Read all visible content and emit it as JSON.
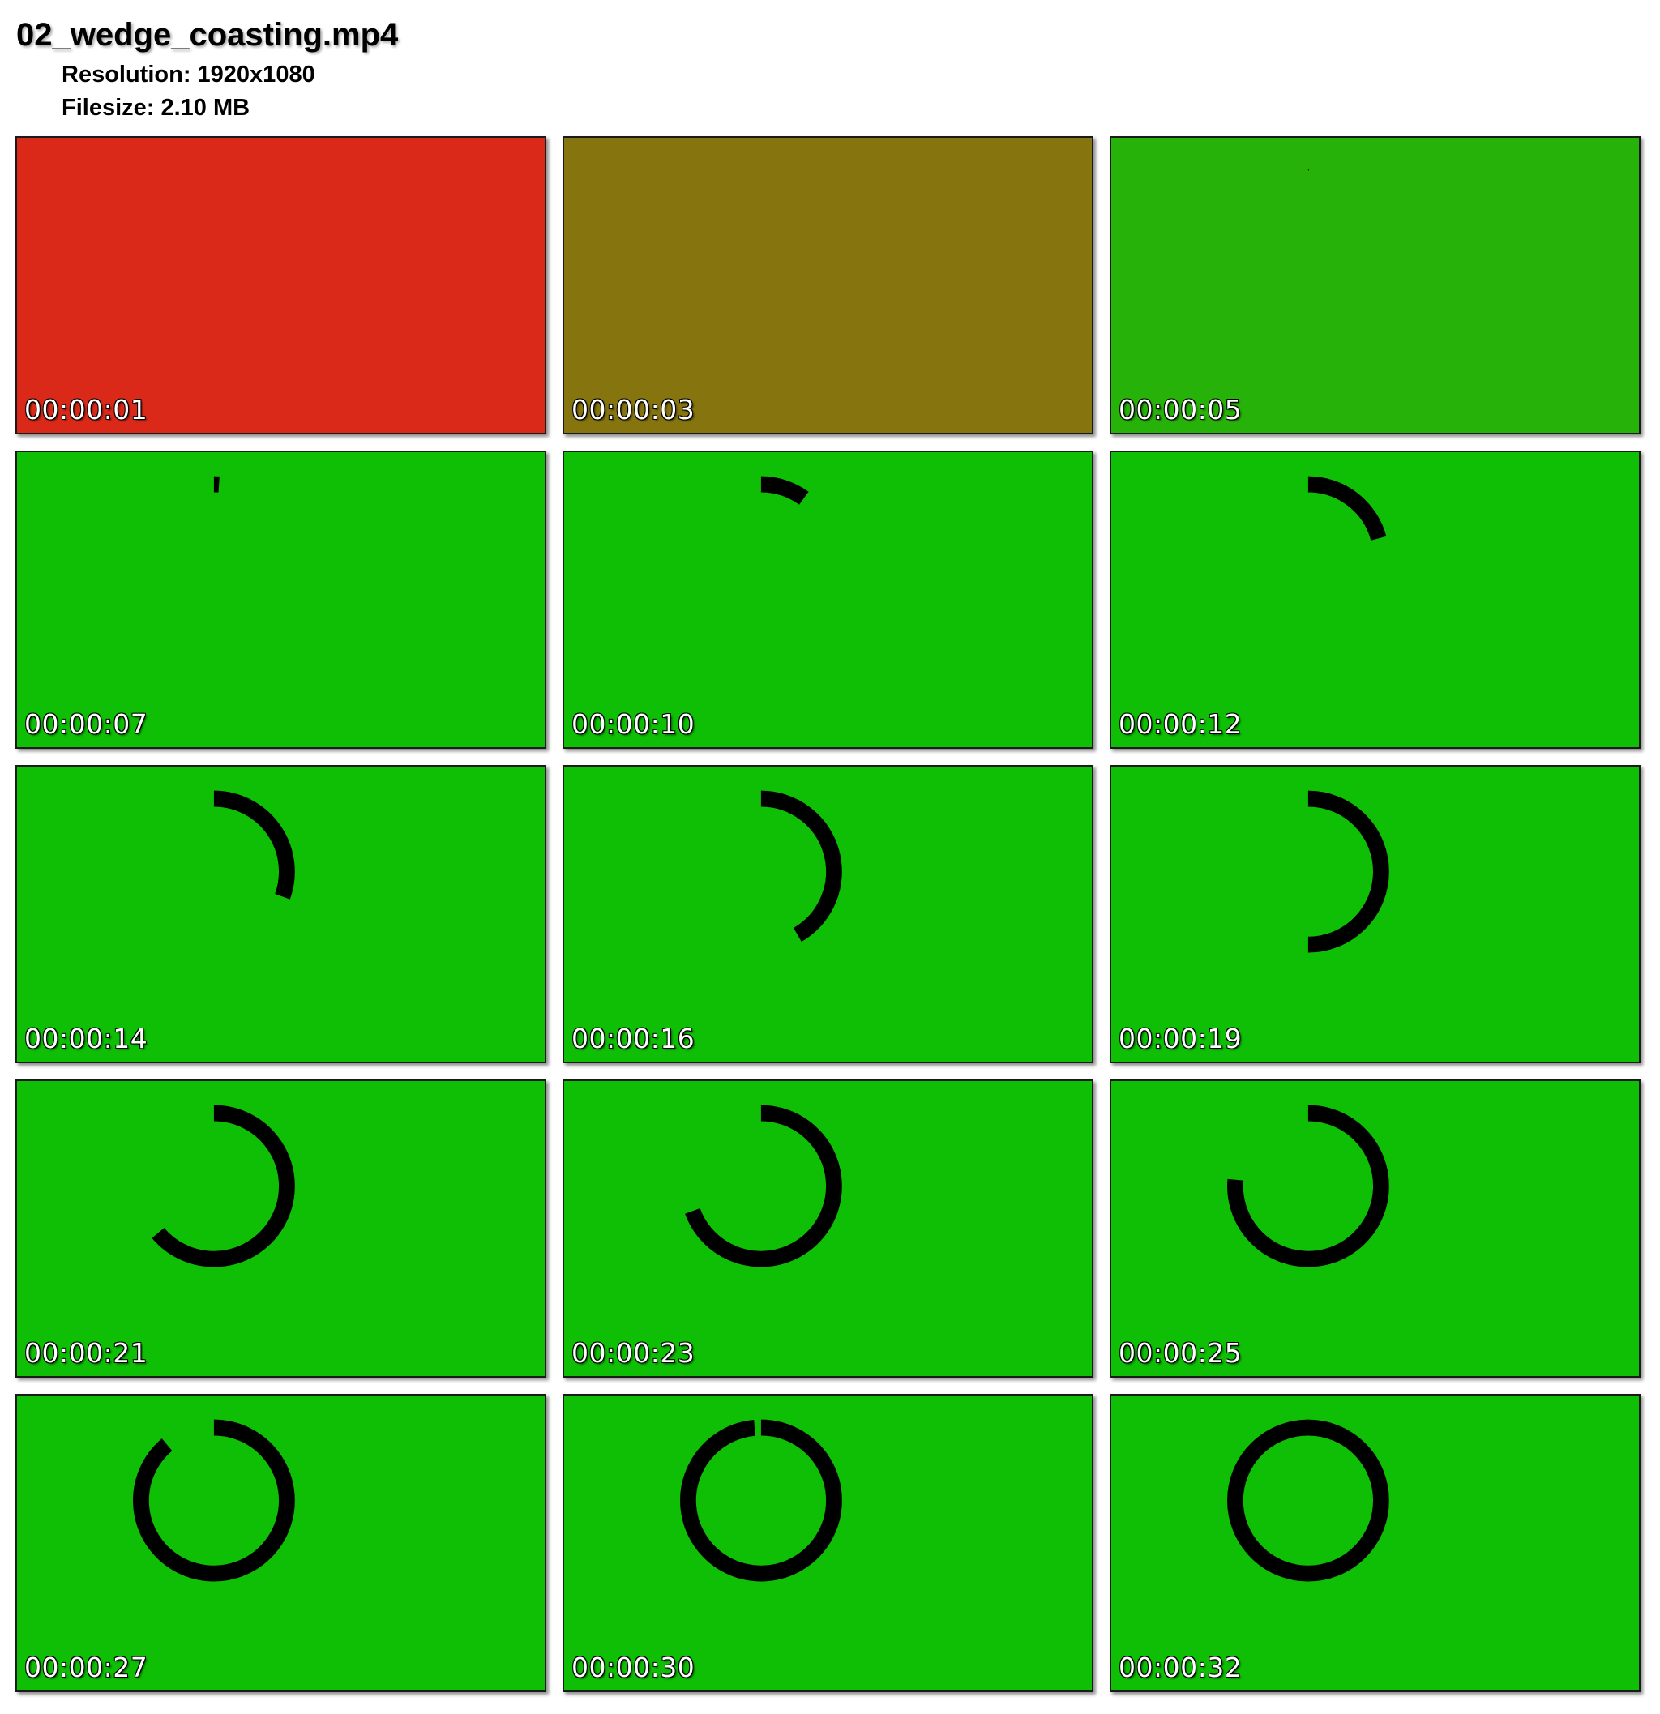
{
  "header": {
    "filename": "02_wedge_coasting.mp4",
    "resolution_label": "Resolution: 1920x1080",
    "filesize_label": "Filesize: 2.10 MB"
  },
  "colors": {
    "ring": "#000000",
    "timestamp_text": "#ffffff"
  },
  "frames": [
    {
      "timestamp": "00:00:01",
      "background": "#da2919",
      "arc_degrees": 0
    },
    {
      "timestamp": "00:00:03",
      "background": "#86740e",
      "arc_degrees": 0
    },
    {
      "timestamp": "00:00:05",
      "background": "#27b20a",
      "arc_degrees": 0.5
    },
    {
      "timestamp": "00:00:07",
      "background": "#0ebf05",
      "arc_degrees": 4
    },
    {
      "timestamp": "00:00:10",
      "background": "#0ebf05",
      "arc_degrees": 36
    },
    {
      "timestamp": "00:00:12",
      "background": "#0ebf05",
      "arc_degrees": 75
    },
    {
      "timestamp": "00:00:14",
      "background": "#0ebf05",
      "arc_degrees": 110
    },
    {
      "timestamp": "00:00:16",
      "background": "#0ebf05",
      "arc_degrees": 150
    },
    {
      "timestamp": "00:00:19",
      "background": "#0ebf05",
      "arc_degrees": 180
    },
    {
      "timestamp": "00:00:21",
      "background": "#0ebf05",
      "arc_degrees": 230
    },
    {
      "timestamp": "00:00:23",
      "background": "#0ebf05",
      "arc_degrees": 250
    },
    {
      "timestamp": "00:00:25",
      "background": "#0ebf05",
      "arc_degrees": 275
    },
    {
      "timestamp": "00:00:27",
      "background": "#0ebf05",
      "arc_degrees": 320
    },
    {
      "timestamp": "00:00:30",
      "background": "#0ebf05",
      "arc_degrees": 355
    },
    {
      "timestamp": "00:00:32",
      "background": "#0ebf05",
      "arc_degrees": 360
    }
  ]
}
